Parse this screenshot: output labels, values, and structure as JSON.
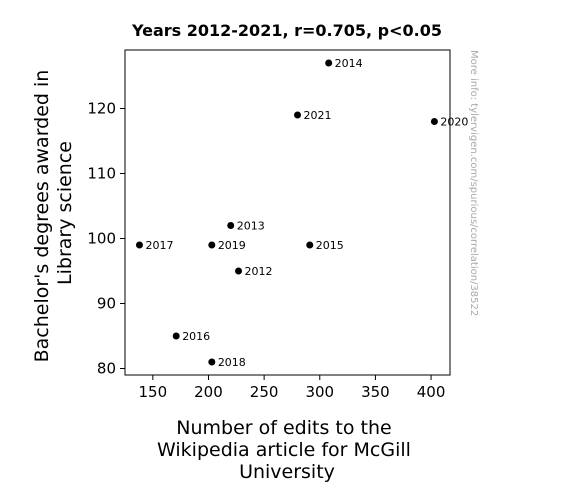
{
  "chart_data": {
    "type": "scatter",
    "title": "Years 2012-2021, r=0.705, p<0.05",
    "xlabel": [
      "Number of edits to the",
      "Wikipedia article for McGill",
      "University"
    ],
    "ylabel": [
      "Bachelor's degrees awarded in",
      "Library science"
    ],
    "watermark": "More info: tylervigen.com/spurious/correlation/38522",
    "xlim": [
      125,
      417
    ],
    "ylim": [
      79,
      129
    ],
    "grid": false,
    "xticks": [
      150,
      200,
      250,
      300,
      350,
      400
    ],
    "yticks": [
      80,
      90,
      100,
      110,
      120
    ],
    "points": [
      {
        "label": "2012",
        "x": 227,
        "y": 95
      },
      {
        "label": "2013",
        "x": 220,
        "y": 102
      },
      {
        "label": "2014",
        "x": 308,
        "y": 127
      },
      {
        "label": "2015",
        "x": 291,
        "y": 99
      },
      {
        "label": "2016",
        "x": 171,
        "y": 85
      },
      {
        "label": "2017",
        "x": 138,
        "y": 99
      },
      {
        "label": "2018",
        "x": 203,
        "y": 81
      },
      {
        "label": "2019",
        "x": 203,
        "y": 99
      },
      {
        "label": "2020",
        "x": 403,
        "y": 118
      },
      {
        "label": "2021",
        "x": 280,
        "y": 119
      }
    ],
    "colors": {
      "point": "#000000",
      "axis": "#000000",
      "watermark": "#aaaaaa"
    }
  }
}
